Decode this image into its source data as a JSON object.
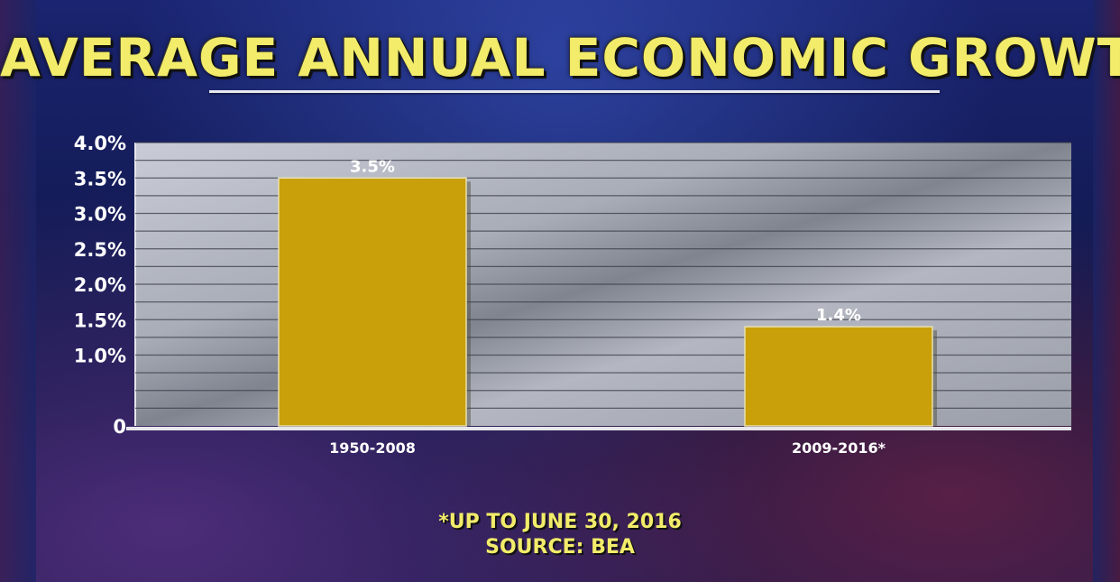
{
  "chart_data": {
    "type": "bar",
    "title": "AVERAGE ANNUAL ECONOMIC GROWTH",
    "categories": [
      "1950-2008",
      "2009-2016*"
    ],
    "values": [
      3.5,
      1.4
    ],
    "data_labels": [
      "3.5%",
      "1.4%"
    ],
    "ylim": [
      0,
      4.0
    ],
    "y_ticks": [
      0,
      1.0,
      1.5,
      2.0,
      2.5,
      3.0,
      3.5,
      4.0
    ],
    "y_tick_labels": [
      "0",
      "1.0%",
      "1.5%",
      "2.0%",
      "2.5%",
      "3.0%",
      "3.5%",
      "4.0%"
    ],
    "grid": true,
    "bar_color": "#c9a00a"
  },
  "footnote": "*UP TO JUNE 30, 2016",
  "source": "SOURCE: BEA"
}
